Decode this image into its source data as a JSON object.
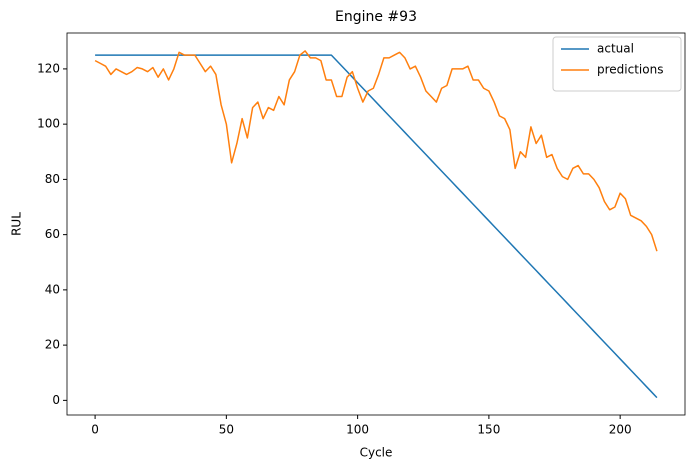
{
  "chart_data": {
    "type": "line",
    "title": "Engine #93",
    "x_label": "Cycle",
    "y_label": "RUL",
    "x": [
      0,
      2,
      4,
      6,
      8,
      10,
      12,
      14,
      16,
      18,
      20,
      22,
      24,
      26,
      28,
      30,
      32,
      34,
      36,
      38,
      40,
      42,
      44,
      46,
      48,
      50,
      52,
      54,
      56,
      58,
      60,
      62,
      64,
      66,
      68,
      70,
      72,
      74,
      76,
      78,
      80,
      82,
      84,
      86,
      88,
      90,
      92,
      94,
      96,
      98,
      100,
      102,
      104,
      106,
      108,
      110,
      112,
      114,
      116,
      118,
      120,
      122,
      124,
      126,
      128,
      130,
      132,
      134,
      136,
      138,
      140,
      142,
      144,
      146,
      148,
      150,
      152,
      154,
      156,
      158,
      160,
      162,
      164,
      166,
      168,
      170,
      172,
      174,
      176,
      178,
      180,
      182,
      184,
      186,
      188,
      190,
      192,
      194,
      196,
      198,
      200,
      202,
      204,
      206,
      208,
      210,
      212,
      214
    ],
    "series": [
      {
        "name": "actual",
        "color": "#1f77b4",
        "values": [
          125,
          125,
          125,
          125,
          125,
          125,
          125,
          125,
          125,
          125,
          125,
          125,
          125,
          125,
          125,
          125,
          125,
          125,
          125,
          125,
          125,
          125,
          125,
          125,
          125,
          125,
          125,
          125,
          125,
          125,
          125,
          125,
          125,
          125,
          125,
          125,
          125,
          125,
          125,
          125,
          125,
          125,
          125,
          125,
          125,
          125,
          123,
          121,
          119,
          117,
          115,
          113,
          111,
          109,
          107,
          105,
          103,
          101,
          99,
          97,
          95,
          93,
          91,
          89,
          87,
          85,
          83,
          81,
          79,
          77,
          75,
          73,
          71,
          69,
          67,
          65,
          63,
          61,
          59,
          57,
          55,
          53,
          51,
          49,
          47,
          45,
          43,
          41,
          39,
          37,
          35,
          33,
          31,
          29,
          27,
          25,
          23,
          21,
          19,
          17,
          15,
          13,
          11,
          9,
          7,
          5,
          3,
          1
        ]
      },
      {
        "name": "predictions",
        "color": "#ff7f0e",
        "values": [
          123,
          122,
          121,
          118,
          120,
          119,
          118,
          119,
          120.5,
          120,
          119,
          120.5,
          117,
          120,
          116,
          120,
          126,
          125,
          125,
          125,
          122,
          119,
          121,
          118,
          107,
          100,
          86,
          93,
          102,
          95,
          106,
          108,
          102,
          106,
          105,
          110,
          107,
          116,
          119,
          125,
          126.5,
          124,
          124,
          123,
          116,
          116,
          110,
          110,
          117,
          119,
          113,
          108,
          112,
          113,
          118,
          124,
          124,
          125,
          126,
          124,
          120,
          121,
          117,
          112,
          110,
          108,
          113,
          114,
          120,
          120,
          120,
          121,
          116,
          116,
          113,
          112,
          108,
          103,
          102,
          98,
          84,
          90,
          88,
          99,
          93,
          96,
          88,
          89,
          84,
          81,
          80,
          84,
          85,
          82,
          82,
          80,
          77,
          72,
          69,
          70,
          75,
          73,
          67,
          66,
          65,
          63,
          60,
          54
        ]
      }
    ],
    "xlim": [
      -10.7,
      224.7
    ],
    "ylim": [
      -5.3,
      133
    ],
    "xticks": [
      0,
      50,
      100,
      150,
      200
    ],
    "yticks": [
      0,
      20,
      40,
      60,
      80,
      100,
      120
    ],
    "legend": "upper right"
  }
}
